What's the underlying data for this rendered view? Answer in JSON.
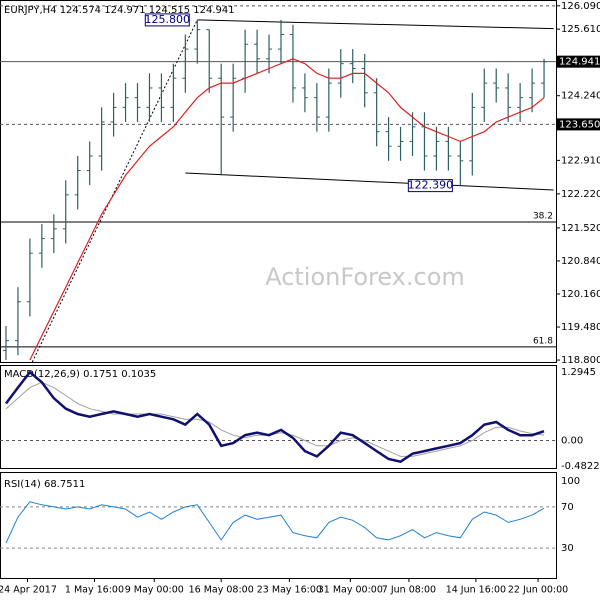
{
  "chart_data": {
    "type": "ohlc",
    "title": "EURJPY,H4  124.574 124.971 124.515 124.941",
    "watermark": "ActionForex.com",
    "xlim": [
      -0.5,
      46
    ],
    "xticks": [
      {
        "value": 1.8,
        "label": "24 Apr 2017"
      },
      {
        "value": 7.4,
        "label": "1 May 16:00"
      },
      {
        "value": 12.4,
        "label": "9 May 00:00"
      },
      {
        "value": 18,
        "label": "16 May 08:00"
      },
      {
        "value": 23.7,
        "label": "23 May 16:00"
      },
      {
        "value": 28.8,
        "label": "31 May 00:00"
      },
      {
        "value": 33.7,
        "label": "7 Jun 08:00"
      },
      {
        "value": 39.3,
        "label": "14 Jun 16:00"
      },
      {
        "value": 44.5,
        "label": "22 Jun 00:00"
      }
    ],
    "ylim": [
      118.76,
      126.21
    ],
    "yticks": [
      {
        "value": 126.09,
        "label": "126.090"
      },
      {
        "value": 125.61,
        "label": "125.610"
      },
      {
        "value": 124.24,
        "label": "124.240"
      },
      {
        "value": 122.91,
        "label": "122.910"
      },
      {
        "value": 122.22,
        "label": "122.220"
      },
      {
        "value": 121.52,
        "label": "121.520"
      },
      {
        "value": 120.84,
        "label": "120.840"
      },
      {
        "value": 120.16,
        "label": "120.160"
      },
      {
        "value": 119.48,
        "label": "119.480"
      },
      {
        "value": 118.8,
        "label": "118.800"
      }
    ],
    "price_levels": [
      {
        "value": 124.941,
        "label": "124.941"
      },
      {
        "value": 123.65,
        "label": "123.650"
      }
    ],
    "color": "#2f5f5f",
    "open": [
      119.0,
      119.2,
      120.0,
      121.0,
      121.3,
      121.5,
      122.2,
      122.7,
      123.0,
      123.7,
      124.0,
      124.2,
      124.0,
      124.4,
      124.0,
      124.6,
      125.2,
      125.6,
      124.6,
      123.8,
      124.6,
      125.3,
      125.0,
      125.2,
      125.5,
      124.4,
      124.2,
      123.8,
      124.5,
      124.9,
      124.8,
      124.3,
      123.5,
      123.2,
      123.3,
      123.6,
      123.0,
      123.3,
      123.0,
      122.9,
      124.0,
      124.5,
      124.4,
      124.0,
      124.2,
      124.5
    ],
    "high": [
      119.5,
      120.3,
      121.3,
      121.6,
      121.8,
      122.5,
      123.0,
      123.3,
      124.0,
      124.3,
      124.5,
      124.5,
      124.7,
      124.7,
      124.9,
      125.5,
      125.8,
      125.6,
      124.9,
      124.9,
      125.6,
      125.6,
      125.5,
      125.8,
      125.7,
      124.7,
      124.5,
      124.8,
      125.2,
      125.2,
      125.1,
      124.6,
      123.8,
      123.6,
      123.9,
      123.9,
      123.6,
      123.6,
      123.3,
      124.3,
      124.8,
      124.8,
      124.7,
      124.5,
      124.8,
      125.0
    ],
    "low": [
      118.8,
      118.9,
      119.7,
      120.7,
      121.0,
      121.2,
      121.9,
      122.4,
      122.7,
      123.4,
      123.7,
      123.7,
      123.7,
      123.7,
      123.7,
      124.3,
      124.9,
      124.3,
      122.6,
      123.5,
      124.3,
      124.7,
      124.7,
      124.9,
      124.1,
      123.9,
      123.5,
      123.5,
      124.2,
      124.5,
      124.0,
      123.2,
      122.9,
      122.9,
      123.0,
      122.7,
      122.7,
      122.7,
      122.39,
      122.6,
      123.7,
      124.1,
      123.7,
      123.7,
      123.9,
      124.2
    ],
    "close": [
      119.2,
      120.0,
      121.0,
      121.3,
      121.5,
      122.2,
      122.7,
      123.0,
      123.7,
      124.0,
      124.2,
      124.0,
      124.4,
      124.0,
      124.6,
      125.2,
      125.6,
      124.6,
      123.8,
      124.6,
      125.3,
      125.0,
      125.2,
      125.5,
      124.4,
      124.2,
      123.8,
      124.5,
      124.9,
      124.8,
      124.3,
      123.5,
      123.2,
      123.3,
      123.6,
      123.0,
      123.3,
      123.0,
      122.9,
      124.0,
      124.5,
      124.4,
      124.0,
      124.2,
      124.5,
      124.94
    ],
    "ma": {
      "color": "#e02020",
      "values": [
        null,
        null,
        118.8,
        119.3,
        119.8,
        120.3,
        120.8,
        121.3,
        121.8,
        122.2,
        122.6,
        122.9,
        123.2,
        123.4,
        123.6,
        123.9,
        124.2,
        124.4,
        124.5,
        124.5,
        124.6,
        124.7,
        124.8,
        124.9,
        125.0,
        124.9,
        124.7,
        124.6,
        124.6,
        124.7,
        124.7,
        124.5,
        124.3,
        124.0,
        123.8,
        123.6,
        123.5,
        123.4,
        123.3,
        123.4,
        123.5,
        123.7,
        123.8,
        123.9,
        124.0,
        124.2
      ]
    },
    "annotations": [
      {
        "index": 16,
        "value": 125.8,
        "label": "125.800"
      },
      {
        "index": 38,
        "value": 122.39,
        "label": "122.390"
      }
    ],
    "fib_levels": [
      {
        "value": 121.64,
        "label": "38.2"
      },
      {
        "value": 119.07,
        "label": "61.8"
      }
    ],
    "trendlines": [
      {
        "x": [
          16,
          45.8
        ],
        "values": [
          125.8,
          125.62
        ],
        "style": "solid"
      },
      {
        "x": [
          15,
          45.8
        ],
        "values": [
          122.65,
          122.3
        ],
        "style": "solid"
      },
      {
        "x": [
          2.2,
          16
        ],
        "values": [
          118.76,
          125.8
        ],
        "style": "dotted"
      }
    ],
    "macd": {
      "title": "MACD(12,26,9) 0.1751 0.1035",
      "ylim": [
        -0.4822,
        1.2945
      ],
      "yticks": [
        1.2945,
        {
          "value": 0,
          "label": "0.00"
        },
        -0.4822
      ],
      "series": [
        {
          "color": "#101070",
          "values": [
            0.7,
            1.0,
            1.29,
            1.1,
            0.8,
            0.6,
            0.5,
            0.45,
            0.5,
            0.55,
            0.5,
            0.45,
            0.5,
            0.45,
            0.4,
            0.3,
            0.5,
            0.3,
            -0.1,
            -0.05,
            0.1,
            0.15,
            0.1,
            0.2,
            0.05,
            -0.2,
            -0.3,
            -0.1,
            0.15,
            0.1,
            -0.05,
            -0.2,
            -0.35,
            -0.4,
            -0.25,
            -0.2,
            -0.15,
            -0.1,
            -0.05,
            0.1,
            0.3,
            0.35,
            0.2,
            0.1,
            0.1,
            0.1751
          ]
        },
        {
          "color": "#a0a0a0",
          "values": [
            0.6,
            0.8,
            1.0,
            1.1,
            1.0,
            0.85,
            0.7,
            0.6,
            0.55,
            0.5,
            0.5,
            0.5,
            0.5,
            0.5,
            0.45,
            0.4,
            0.4,
            0.35,
            0.2,
            0.1,
            0.05,
            0.1,
            0.1,
            0.15,
            0.1,
            0.0,
            -0.1,
            -0.1,
            0.0,
            0.05,
            0.0,
            -0.1,
            -0.2,
            -0.3,
            -0.3,
            -0.25,
            -0.2,
            -0.15,
            -0.1,
            0.0,
            0.15,
            0.25,
            0.25,
            0.18,
            0.13,
            0.1035
          ]
        }
      ]
    },
    "rsi": {
      "title": "RSI(14) 68.7511",
      "ylim": [
        0,
        100
      ],
      "yticks": [
        100,
        70,
        30
      ],
      "color": "#2080d0",
      "values": [
        35,
        60,
        75,
        72,
        70,
        68,
        70,
        68,
        72,
        70,
        68,
        60,
        65,
        58,
        65,
        70,
        72,
        55,
        38,
        55,
        62,
        58,
        60,
        62,
        45,
        42,
        40,
        55,
        60,
        57,
        50,
        40,
        38,
        42,
        48,
        40,
        45,
        42,
        40,
        58,
        65,
        62,
        55,
        58,
        62,
        68.75
      ]
    }
  }
}
